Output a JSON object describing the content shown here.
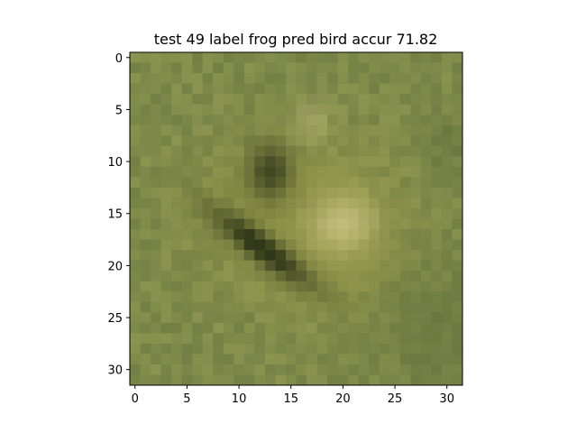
{
  "figure": {
    "title": "test 49 label frog pred bird accur 71.82",
    "image_size": {
      "rows": 32,
      "cols": 32
    },
    "x_ticks": [
      0,
      5,
      10,
      15,
      20,
      25,
      30
    ],
    "y_ticks": [
      0,
      5,
      10,
      15,
      20,
      25,
      30
    ],
    "x_tick_labels": [
      "0",
      "5",
      "10",
      "15",
      "20",
      "25",
      "30"
    ],
    "y_tick_labels": [
      "0",
      "5",
      "10",
      "15",
      "20",
      "25",
      "30"
    ],
    "image_description": "low-resolution (32x32) photo of a green frog on grass",
    "colors": {
      "grass_base": "#8a9450",
      "grass_dark": "#5f6e3a",
      "frog_body": "#9a9a48",
      "frog_highlight": "#d2c989",
      "frog_shadow": "#1f2710",
      "eye_dark": "#2e3418"
    },
    "test_index": 49,
    "label": "frog",
    "pred": "bird",
    "accuracy": 71.82
  }
}
